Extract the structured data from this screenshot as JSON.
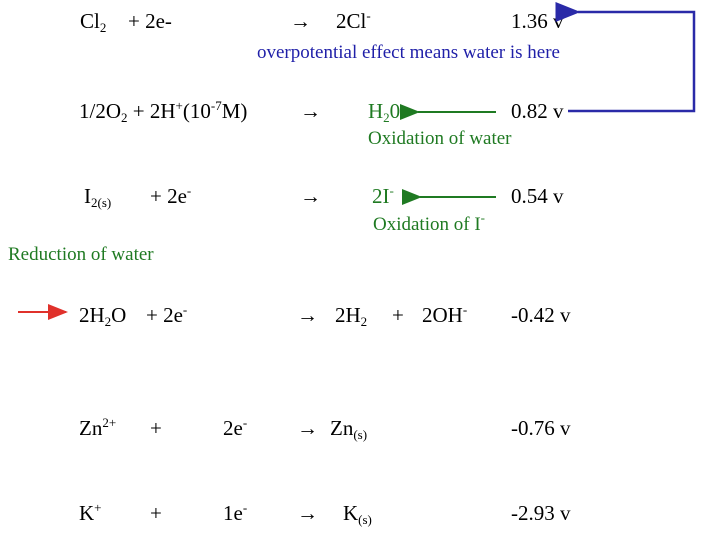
{
  "colors": {
    "text": "#000000",
    "green": "#1f7a22",
    "blue": "#1f1fa8",
    "red_arrow": "#e0312b",
    "blue_arrow": "#2a2aa8"
  },
  "row1": {
    "cl": "Cl",
    "cl_sub": "2",
    "plus_e": "+ 2e-",
    "arrow": "→",
    "product": "2Cl",
    "product_sup": "-",
    "potential": "1.36 v",
    "note": "overpotential effect means water is here"
  },
  "row2": {
    "frac": "1/2O",
    "o_sub": "2",
    "plus_h": " + 2H",
    "h_sup": "+",
    "conc_open": "(10",
    "conc_sup": "-7",
    "conc_close": "M)",
    "arrow": "→",
    "product": "H",
    "product_sub": "2",
    "product_end": "0",
    "potential": "0.82 v",
    "label": "Oxidation of water"
  },
  "row3": {
    "i": "I",
    "i_sub": "2(s)",
    "plus_e": "+ 2e",
    "e_sup": "-",
    "arrow": "→",
    "product": "2I",
    "product_sup": "-",
    "potential": "0.54 v",
    "label": "Oxidation of I",
    "label_sup": "-"
  },
  "reduction_label": "Reduction of water",
  "row4": {
    "water": "2H",
    "water_sub": "2",
    "water_end": "O",
    "plus_e": "+ 2e",
    "e_sup": "-",
    "arrow": "→",
    "h2": "2H",
    "h2_sub": "2",
    "plus": "+",
    "oh": "2OH",
    "oh_sup": "-",
    "potential": "-0.42 v"
  },
  "row5": {
    "zn": "Zn",
    "zn_sup": "2+",
    "plus": "+",
    "e": "2e",
    "e_sup": "-",
    "arrow": "→",
    "product": "Zn",
    "product_sub": "(s)",
    "potential": "-0.76 v"
  },
  "row6": {
    "k": "K",
    "k_sup": "+",
    "plus": "+",
    "e": "1e",
    "e_sup": "-",
    "arrow": "→",
    "product": "K",
    "product_sub": "(s)",
    "potential": "-2.93 v"
  }
}
